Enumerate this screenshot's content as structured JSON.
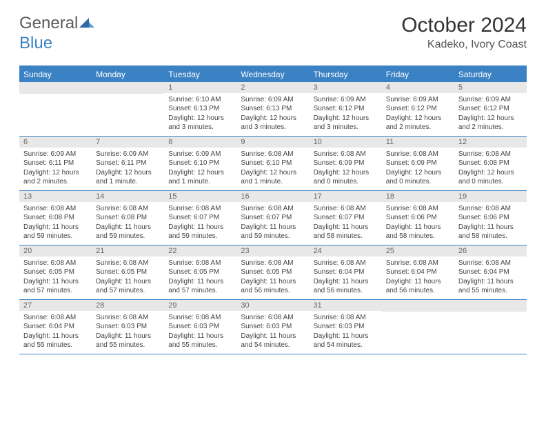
{
  "brand": {
    "part1": "General",
    "part2": "Blue"
  },
  "title": "October 2024",
  "location": "Kadeko, Ivory Coast",
  "weekdays": [
    "Sunday",
    "Monday",
    "Tuesday",
    "Wednesday",
    "Thursday",
    "Friday",
    "Saturday"
  ],
  "colors": {
    "header_bg": "#3b82c4",
    "header_text": "#ffffff",
    "daynum_bg": "#e8e8e8",
    "border": "#3b82c4",
    "body_text": "#444444"
  },
  "weeks": [
    [
      {
        "n": "",
        "sr": "",
        "ss": "",
        "dl": ""
      },
      {
        "n": "",
        "sr": "",
        "ss": "",
        "dl": ""
      },
      {
        "n": "1",
        "sr": "Sunrise: 6:10 AM",
        "ss": "Sunset: 6:13 PM",
        "dl": "Daylight: 12 hours and 3 minutes."
      },
      {
        "n": "2",
        "sr": "Sunrise: 6:09 AM",
        "ss": "Sunset: 6:13 PM",
        "dl": "Daylight: 12 hours and 3 minutes."
      },
      {
        "n": "3",
        "sr": "Sunrise: 6:09 AM",
        "ss": "Sunset: 6:12 PM",
        "dl": "Daylight: 12 hours and 3 minutes."
      },
      {
        "n": "4",
        "sr": "Sunrise: 6:09 AM",
        "ss": "Sunset: 6:12 PM",
        "dl": "Daylight: 12 hours and 2 minutes."
      },
      {
        "n": "5",
        "sr": "Sunrise: 6:09 AM",
        "ss": "Sunset: 6:12 PM",
        "dl": "Daylight: 12 hours and 2 minutes."
      }
    ],
    [
      {
        "n": "6",
        "sr": "Sunrise: 6:09 AM",
        "ss": "Sunset: 6:11 PM",
        "dl": "Daylight: 12 hours and 2 minutes."
      },
      {
        "n": "7",
        "sr": "Sunrise: 6:09 AM",
        "ss": "Sunset: 6:11 PM",
        "dl": "Daylight: 12 hours and 1 minute."
      },
      {
        "n": "8",
        "sr": "Sunrise: 6:09 AM",
        "ss": "Sunset: 6:10 PM",
        "dl": "Daylight: 12 hours and 1 minute."
      },
      {
        "n": "9",
        "sr": "Sunrise: 6:08 AM",
        "ss": "Sunset: 6:10 PM",
        "dl": "Daylight: 12 hours and 1 minute."
      },
      {
        "n": "10",
        "sr": "Sunrise: 6:08 AM",
        "ss": "Sunset: 6:09 PM",
        "dl": "Daylight: 12 hours and 0 minutes."
      },
      {
        "n": "11",
        "sr": "Sunrise: 6:08 AM",
        "ss": "Sunset: 6:09 PM",
        "dl": "Daylight: 12 hours and 0 minutes."
      },
      {
        "n": "12",
        "sr": "Sunrise: 6:08 AM",
        "ss": "Sunset: 6:08 PM",
        "dl": "Daylight: 12 hours and 0 minutes."
      }
    ],
    [
      {
        "n": "13",
        "sr": "Sunrise: 6:08 AM",
        "ss": "Sunset: 6:08 PM",
        "dl": "Daylight: 11 hours and 59 minutes."
      },
      {
        "n": "14",
        "sr": "Sunrise: 6:08 AM",
        "ss": "Sunset: 6:08 PM",
        "dl": "Daylight: 11 hours and 59 minutes."
      },
      {
        "n": "15",
        "sr": "Sunrise: 6:08 AM",
        "ss": "Sunset: 6:07 PM",
        "dl": "Daylight: 11 hours and 59 minutes."
      },
      {
        "n": "16",
        "sr": "Sunrise: 6:08 AM",
        "ss": "Sunset: 6:07 PM",
        "dl": "Daylight: 11 hours and 59 minutes."
      },
      {
        "n": "17",
        "sr": "Sunrise: 6:08 AM",
        "ss": "Sunset: 6:07 PM",
        "dl": "Daylight: 11 hours and 58 minutes."
      },
      {
        "n": "18",
        "sr": "Sunrise: 6:08 AM",
        "ss": "Sunset: 6:06 PM",
        "dl": "Daylight: 11 hours and 58 minutes."
      },
      {
        "n": "19",
        "sr": "Sunrise: 6:08 AM",
        "ss": "Sunset: 6:06 PM",
        "dl": "Daylight: 11 hours and 58 minutes."
      }
    ],
    [
      {
        "n": "20",
        "sr": "Sunrise: 6:08 AM",
        "ss": "Sunset: 6:05 PM",
        "dl": "Daylight: 11 hours and 57 minutes."
      },
      {
        "n": "21",
        "sr": "Sunrise: 6:08 AM",
        "ss": "Sunset: 6:05 PM",
        "dl": "Daylight: 11 hours and 57 minutes."
      },
      {
        "n": "22",
        "sr": "Sunrise: 6:08 AM",
        "ss": "Sunset: 6:05 PM",
        "dl": "Daylight: 11 hours and 57 minutes."
      },
      {
        "n": "23",
        "sr": "Sunrise: 6:08 AM",
        "ss": "Sunset: 6:05 PM",
        "dl": "Daylight: 11 hours and 56 minutes."
      },
      {
        "n": "24",
        "sr": "Sunrise: 6:08 AM",
        "ss": "Sunset: 6:04 PM",
        "dl": "Daylight: 11 hours and 56 minutes."
      },
      {
        "n": "25",
        "sr": "Sunrise: 6:08 AM",
        "ss": "Sunset: 6:04 PM",
        "dl": "Daylight: 11 hours and 56 minutes."
      },
      {
        "n": "26",
        "sr": "Sunrise: 6:08 AM",
        "ss": "Sunset: 6:04 PM",
        "dl": "Daylight: 11 hours and 55 minutes."
      }
    ],
    [
      {
        "n": "27",
        "sr": "Sunrise: 6:08 AM",
        "ss": "Sunset: 6:04 PM",
        "dl": "Daylight: 11 hours and 55 minutes."
      },
      {
        "n": "28",
        "sr": "Sunrise: 6:08 AM",
        "ss": "Sunset: 6:03 PM",
        "dl": "Daylight: 11 hours and 55 minutes."
      },
      {
        "n": "29",
        "sr": "Sunrise: 6:08 AM",
        "ss": "Sunset: 6:03 PM",
        "dl": "Daylight: 11 hours and 55 minutes."
      },
      {
        "n": "30",
        "sr": "Sunrise: 6:08 AM",
        "ss": "Sunset: 6:03 PM",
        "dl": "Daylight: 11 hours and 54 minutes."
      },
      {
        "n": "31",
        "sr": "Sunrise: 6:08 AM",
        "ss": "Sunset: 6:03 PM",
        "dl": "Daylight: 11 hours and 54 minutes."
      },
      {
        "n": "",
        "sr": "",
        "ss": "",
        "dl": ""
      },
      {
        "n": "",
        "sr": "",
        "ss": "",
        "dl": ""
      }
    ]
  ]
}
